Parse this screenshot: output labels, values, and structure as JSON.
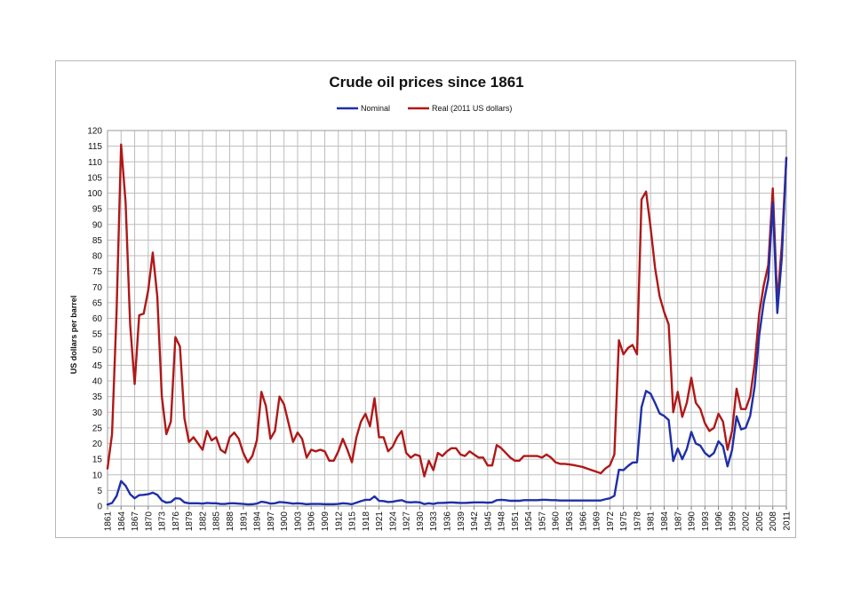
{
  "chart_data": {
    "type": "line",
    "title": "Crude oil prices since 1861",
    "xlabel": "",
    "ylabel": "US dollars per barrel",
    "xlim": [
      1861,
      2011
    ],
    "ylim": [
      0,
      120
    ],
    "y_ticks": [
      0,
      5,
      10,
      15,
      20,
      25,
      30,
      35,
      40,
      45,
      50,
      55,
      60,
      65,
      70,
      75,
      80,
      85,
      90,
      95,
      100,
      105,
      110,
      115,
      120
    ],
    "x_tick_labels": [
      "1861",
      "1864",
      "1867",
      "1870",
      "1873",
      "1876",
      "1879",
      "1882",
      "1885",
      "1888",
      "1891",
      "1894",
      "1897",
      "1900",
      "1903",
      "1906",
      "1909",
      "1912",
      "1915",
      "1918",
      "1921",
      "1924",
      "1927",
      "1930",
      "1933",
      "1936",
      "1939",
      "1942",
      "1945",
      "1948",
      "1951",
      "1954",
      "1957",
      "1960",
      "1963",
      "1966",
      "1969",
      "1972",
      "1975",
      "1978",
      "1981",
      "1984",
      "1987",
      "1990",
      "1993",
      "1996",
      "1999",
      "2002",
      "2005",
      "2008",
      "2011"
    ],
    "grid": true,
    "legend_position": "top-center",
    "series": [
      {
        "name": "Nominal",
        "color": "#1f2fa8",
        "points": [
          [
            1861,
            0.5
          ],
          [
            1862,
            1
          ],
          [
            1863,
            3.2
          ],
          [
            1864,
            8
          ],
          [
            1865,
            6.5
          ],
          [
            1866,
            3.8
          ],
          [
            1867,
            2.5
          ],
          [
            1868,
            3.5
          ],
          [
            1869,
            3.6
          ],
          [
            1870,
            3.8
          ],
          [
            1871,
            4.3
          ],
          [
            1872,
            3.6
          ],
          [
            1873,
            1.8
          ],
          [
            1874,
            1.1
          ],
          [
            1875,
            1.3
          ],
          [
            1876,
            2.5
          ],
          [
            1877,
            2.4
          ],
          [
            1878,
            1.2
          ],
          [
            1879,
            0.9
          ],
          [
            1880,
            0.9
          ],
          [
            1881,
            0.9
          ],
          [
            1882,
            0.8
          ],
          [
            1883,
            1.0
          ],
          [
            1884,
            0.9
          ],
          [
            1885,
            0.9
          ],
          [
            1886,
            0.7
          ],
          [
            1887,
            0.7
          ],
          [
            1888,
            0.9
          ],
          [
            1889,
            0.9
          ],
          [
            1890,
            0.8
          ],
          [
            1891,
            0.7
          ],
          [
            1892,
            0.55
          ],
          [
            1893,
            0.6
          ],
          [
            1894,
            0.8
          ],
          [
            1895,
            1.4
          ],
          [
            1896,
            1.2
          ],
          [
            1897,
            0.8
          ],
          [
            1898,
            0.9
          ],
          [
            1899,
            1.3
          ],
          [
            1900,
            1.2
          ],
          [
            1901,
            1.0
          ],
          [
            1902,
            0.8
          ],
          [
            1903,
            0.9
          ],
          [
            1904,
            0.8
          ],
          [
            1905,
            0.6
          ],
          [
            1906,
            0.7
          ],
          [
            1907,
            0.7
          ],
          [
            1908,
            0.7
          ],
          [
            1909,
            0.6
          ],
          [
            1910,
            0.6
          ],
          [
            1911,
            0.6
          ],
          [
            1912,
            0.7
          ],
          [
            1913,
            0.9
          ],
          [
            1914,
            0.8
          ],
          [
            1915,
            0.6
          ],
          [
            1916,
            1.1
          ],
          [
            1917,
            1.6
          ],
          [
            1918,
            2.0
          ],
          [
            1919,
            2.0
          ],
          [
            1920,
            3.1
          ],
          [
            1921,
            1.7
          ],
          [
            1922,
            1.6
          ],
          [
            1923,
            1.3
          ],
          [
            1924,
            1.4
          ],
          [
            1925,
            1.7
          ],
          [
            1926,
            1.9
          ],
          [
            1927,
            1.3
          ],
          [
            1928,
            1.2
          ],
          [
            1929,
            1.3
          ],
          [
            1930,
            1.2
          ],
          [
            1931,
            0.65
          ],
          [
            1932,
            0.9
          ],
          [
            1933,
            0.7
          ],
          [
            1934,
            1.0
          ],
          [
            1935,
            1.0
          ],
          [
            1936,
            1.1
          ],
          [
            1937,
            1.2
          ],
          [
            1938,
            1.1
          ],
          [
            1939,
            1.0
          ],
          [
            1940,
            1.0
          ],
          [
            1941,
            1.1
          ],
          [
            1942,
            1.2
          ],
          [
            1943,
            1.2
          ],
          [
            1944,
            1.2
          ],
          [
            1945,
            1.1
          ],
          [
            1946,
            1.2
          ],
          [
            1947,
            1.9
          ],
          [
            1948,
            2.0
          ],
          [
            1949,
            1.9
          ],
          [
            1950,
            1.7
          ],
          [
            1951,
            1.7
          ],
          [
            1952,
            1.7
          ],
          [
            1953,
            1.9
          ],
          [
            1954,
            1.9
          ],
          [
            1955,
            1.9
          ],
          [
            1956,
            1.9
          ],
          [
            1957,
            2.0
          ],
          [
            1958,
            2.0
          ],
          [
            1959,
            1.9
          ],
          [
            1960,
            1.9
          ],
          [
            1961,
            1.8
          ],
          [
            1962,
            1.8
          ],
          [
            1963,
            1.8
          ],
          [
            1964,
            1.8
          ],
          [
            1965,
            1.8
          ],
          [
            1966,
            1.8
          ],
          [
            1967,
            1.8
          ],
          [
            1968,
            1.8
          ],
          [
            1969,
            1.8
          ],
          [
            1970,
            1.8
          ],
          [
            1971,
            2.2
          ],
          [
            1972,
            2.5
          ],
          [
            1973,
            3.3
          ],
          [
            1974,
            11.6
          ],
          [
            1975,
            11.5
          ],
          [
            1976,
            12.8
          ],
          [
            1977,
            13.9
          ],
          [
            1978,
            14.0
          ],
          [
            1979,
            31.6
          ],
          [
            1980,
            36.8
          ],
          [
            1981,
            35.9
          ],
          [
            1982,
            32.9
          ],
          [
            1983,
            29.6
          ],
          [
            1984,
            28.8
          ],
          [
            1985,
            27.5
          ],
          [
            1986,
            14.4
          ],
          [
            1987,
            18.4
          ],
          [
            1988,
            15.0
          ],
          [
            1989,
            18.2
          ],
          [
            1990,
            23.7
          ],
          [
            1991,
            20.0
          ],
          [
            1992,
            19.3
          ],
          [
            1993,
            17.0
          ],
          [
            1994,
            15.8
          ],
          [
            1995,
            17.0
          ],
          [
            1996,
            20.7
          ],
          [
            1997,
            19.1
          ],
          [
            1998,
            12.7
          ],
          [
            1999,
            17.9
          ],
          [
            2000,
            28.7
          ],
          [
            2001,
            24.5
          ],
          [
            2002,
            25.0
          ],
          [
            2003,
            28.8
          ],
          [
            2004,
            38.3
          ],
          [
            2005,
            54.5
          ],
          [
            2006,
            65.1
          ],
          [
            2007,
            72.4
          ],
          [
            2008,
            97.0
          ],
          [
            2009,
            61.7
          ],
          [
            2010,
            79.5
          ],
          [
            2011,
            111.3
          ]
        ]
      },
      {
        "name": "Real (2011 US dollars)",
        "color": "#b01818",
        "points": [
          [
            1861,
            12
          ],
          [
            1862,
            23
          ],
          [
            1863,
            62
          ],
          [
            1864,
            115.5
          ],
          [
            1865,
            97
          ],
          [
            1866,
            58
          ],
          [
            1867,
            39
          ],
          [
            1868,
            61
          ],
          [
            1869,
            61.5
          ],
          [
            1870,
            69
          ],
          [
            1871,
            81
          ],
          [
            1872,
            67
          ],
          [
            1873,
            35
          ],
          [
            1874,
            23
          ],
          [
            1875,
            27
          ],
          [
            1876,
            54
          ],
          [
            1877,
            51
          ],
          [
            1878,
            28
          ],
          [
            1879,
            20.5
          ],
          [
            1880,
            22
          ],
          [
            1881,
            20
          ],
          [
            1882,
            18
          ],
          [
            1883,
            24
          ],
          [
            1884,
            21
          ],
          [
            1885,
            22
          ],
          [
            1886,
            18
          ],
          [
            1887,
            17
          ],
          [
            1888,
            22
          ],
          [
            1889,
            23.5
          ],
          [
            1890,
            21.5
          ],
          [
            1891,
            17
          ],
          [
            1892,
            14
          ],
          [
            1893,
            16
          ],
          [
            1894,
            21
          ],
          [
            1895,
            36.5
          ],
          [
            1896,
            32
          ],
          [
            1897,
            21.5
          ],
          [
            1898,
            24
          ],
          [
            1899,
            35
          ],
          [
            1900,
            32.5
          ],
          [
            1901,
            26.5
          ],
          [
            1902,
            20.5
          ],
          [
            1903,
            23.5
          ],
          [
            1904,
            21.5
          ],
          [
            1905,
            15.5
          ],
          [
            1906,
            18
          ],
          [
            1907,
            17.5
          ],
          [
            1908,
            18
          ],
          [
            1909,
            17.5
          ],
          [
            1910,
            14.5
          ],
          [
            1911,
            14.5
          ],
          [
            1912,
            17.5
          ],
          [
            1913,
            21.5
          ],
          [
            1914,
            18
          ],
          [
            1915,
            14
          ],
          [
            1916,
            22
          ],
          [
            1917,
            27
          ],
          [
            1918,
            29.5
          ],
          [
            1919,
            25.5
          ],
          [
            1920,
            34.5
          ],
          [
            1921,
            22
          ],
          [
            1922,
            22
          ],
          [
            1923,
            17.5
          ],
          [
            1924,
            19
          ],
          [
            1925,
            22
          ],
          [
            1926,
            24
          ],
          [
            1927,
            17
          ],
          [
            1928,
            15.5
          ],
          [
            1929,
            16.5
          ],
          [
            1930,
            16
          ],
          [
            1931,
            9.5
          ],
          [
            1932,
            14.5
          ],
          [
            1933,
            11.5
          ],
          [
            1934,
            17
          ],
          [
            1935,
            16
          ],
          [
            1936,
            17.5
          ],
          [
            1937,
            18.5
          ],
          [
            1938,
            18.5
          ],
          [
            1939,
            16.5
          ],
          [
            1940,
            16
          ],
          [
            1941,
            17.5
          ],
          [
            1942,
            16.5
          ],
          [
            1943,
            15.5
          ],
          [
            1944,
            15.5
          ],
          [
            1945,
            13
          ],
          [
            1946,
            13
          ],
          [
            1947,
            19.5
          ],
          [
            1948,
            18.5
          ],
          [
            1949,
            17
          ],
          [
            1950,
            15.5
          ],
          [
            1951,
            14.5
          ],
          [
            1952,
            14.5
          ],
          [
            1953,
            16
          ],
          [
            1954,
            16
          ],
          [
            1955,
            16
          ],
          [
            1956,
            16
          ],
          [
            1957,
            15.5
          ],
          [
            1958,
            16.5
          ],
          [
            1959,
            15.5
          ],
          [
            1960,
            14
          ],
          [
            1961,
            13.5
          ],
          [
            1962,
            13.5
          ],
          [
            1963,
            13.3
          ],
          [
            1964,
            13.1
          ],
          [
            1965,
            12.8
          ],
          [
            1966,
            12.5
          ],
          [
            1967,
            12
          ],
          [
            1968,
            11.5
          ],
          [
            1969,
            11
          ],
          [
            1970,
            10.5
          ],
          [
            1971,
            12
          ],
          [
            1972,
            13
          ],
          [
            1973,
            16.5
          ],
          [
            1974,
            53
          ],
          [
            1975,
            48.5
          ],
          [
            1976,
            50.5
          ],
          [
            1977,
            51.5
          ],
          [
            1978,
            48.5
          ],
          [
            1979,
            98
          ],
          [
            1980,
            100.5
          ],
          [
            1981,
            89
          ],
          [
            1982,
            76
          ],
          [
            1983,
            67
          ],
          [
            1984,
            62
          ],
          [
            1985,
            58
          ],
          [
            1986,
            30
          ],
          [
            1987,
            36.5
          ],
          [
            1988,
            28.5
          ],
          [
            1989,
            33
          ],
          [
            1990,
            41
          ],
          [
            1991,
            33
          ],
          [
            1992,
            31
          ],
          [
            1993,
            26.5
          ],
          [
            1994,
            24
          ],
          [
            1995,
            25
          ],
          [
            1996,
            29.5
          ],
          [
            1997,
            27
          ],
          [
            1998,
            18
          ],
          [
            1999,
            24
          ],
          [
            2000,
            37.5
          ],
          [
            2001,
            31
          ],
          [
            2002,
            31
          ],
          [
            2003,
            35
          ],
          [
            2004,
            45.5
          ],
          [
            2005,
            61.5
          ],
          [
            2006,
            70.5
          ],
          [
            2007,
            77
          ],
          [
            2008,
            101.5
          ],
          [
            2009,
            65
          ],
          [
            2010,
            83.5
          ],
          [
            2011,
            111.3
          ]
        ]
      }
    ]
  }
}
